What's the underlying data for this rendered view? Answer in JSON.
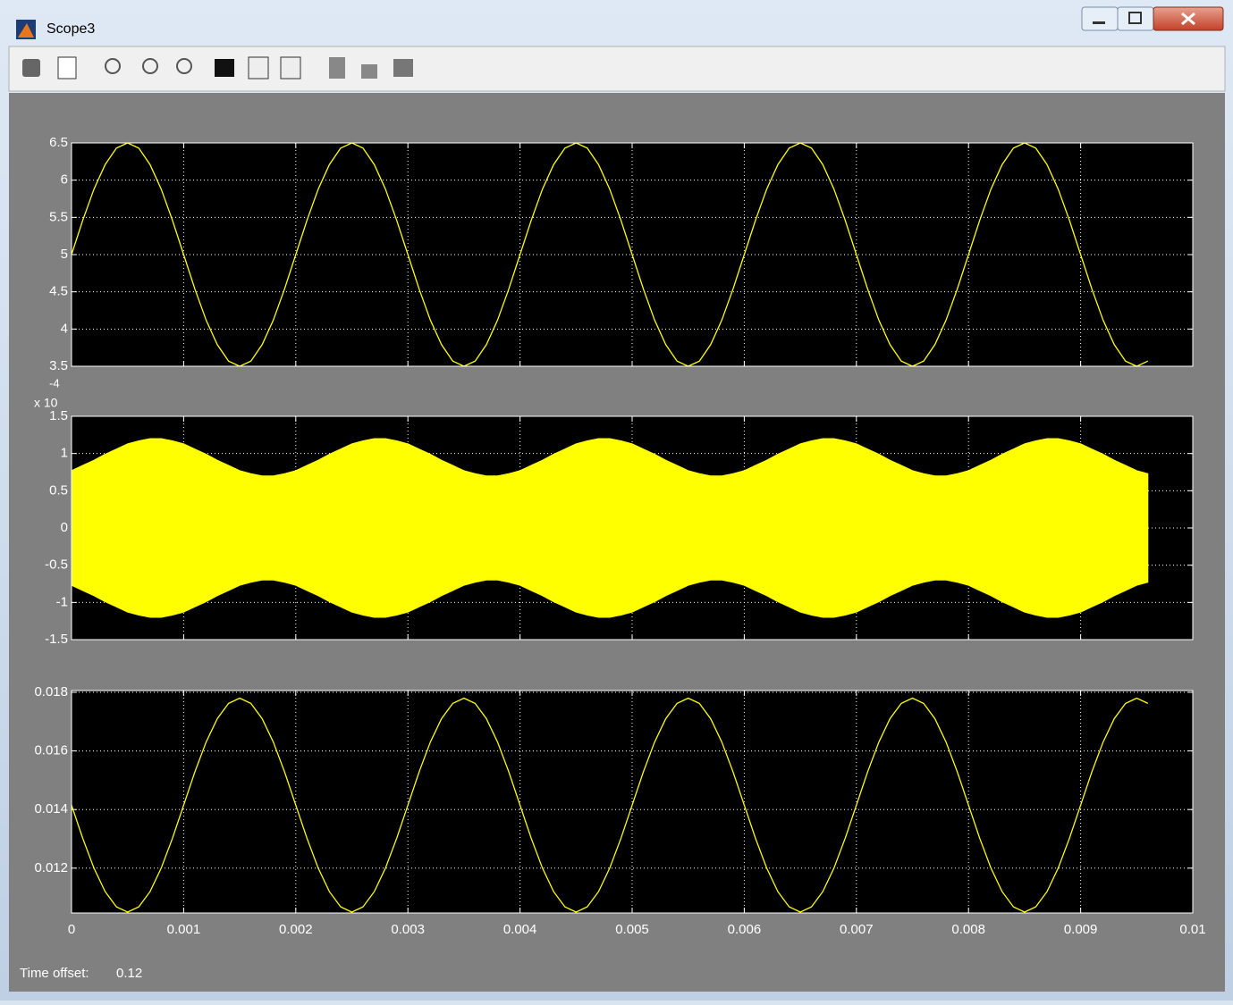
{
  "window": {
    "title": "Scope3"
  },
  "time_offset": {
    "label": "Time offset:",
    "value": "0.12"
  },
  "chart_data": [
    {
      "type": "line",
      "grid": true,
      "ylim": [
        3.5,
        6.5
      ],
      "yticks": [
        3.5,
        4,
        4.5,
        5,
        5.5,
        6,
        6.5
      ],
      "x": [
        0,
        0.0001,
        0.0002,
        0.0003,
        0.0004,
        0.0005,
        0.0006,
        0.0007,
        0.0008,
        0.0009,
        0.001,
        0.0011,
        0.0012,
        0.0013,
        0.0014,
        0.0015,
        0.0016,
        0.0017,
        0.0018,
        0.0019,
        0.002,
        0.0021,
        0.0022,
        0.0023,
        0.0024,
        0.0025,
        0.0026,
        0.0027,
        0.0028,
        0.0029,
        0.003,
        0.0031,
        0.0032,
        0.0033,
        0.0034,
        0.0035,
        0.0036,
        0.0037,
        0.0038,
        0.0039,
        0.004,
        0.0041,
        0.0042,
        0.0043,
        0.0044,
        0.0045,
        0.0046,
        0.0047,
        0.0048,
        0.0049,
        0.005,
        0.0051,
        0.0052,
        0.0053,
        0.0054,
        0.0055,
        0.0056,
        0.0057,
        0.0058,
        0.0059,
        0.006,
        0.0061,
        0.0062,
        0.0063,
        0.0064,
        0.0065,
        0.0066,
        0.0067,
        0.0068,
        0.0069,
        0.007,
        0.0071,
        0.0072,
        0.0073,
        0.0074,
        0.0075,
        0.0076,
        0.0077,
        0.0078,
        0.0079,
        0.008,
        0.0081,
        0.0082,
        0.0083,
        0.0084,
        0.0085,
        0.0086,
        0.0087,
        0.0088,
        0.0089,
        0.009,
        0.0091,
        0.0092,
        0.0093,
        0.0094,
        0.0095,
        0.0096
      ],
      "series": [
        {
          "color": "#ffff00",
          "values": [
            5,
            5.46,
            5.88,
            6.21,
            6.43,
            6.5,
            6.43,
            6.21,
            5.88,
            5.46,
            5,
            4.54,
            4.12,
            3.79,
            3.57,
            3.5,
            3.57,
            3.79,
            4.12,
            4.54,
            5,
            5.46,
            5.88,
            6.21,
            6.43,
            6.5,
            6.43,
            6.21,
            5.88,
            5.46,
            5,
            4.54,
            4.12,
            3.79,
            3.57,
            3.5,
            3.57,
            3.79,
            4.12,
            4.54,
            5,
            5.46,
            5.88,
            6.21,
            6.43,
            6.5,
            6.43,
            6.21,
            5.88,
            5.46,
            5,
            4.54,
            4.12,
            3.79,
            3.57,
            3.5,
            3.57,
            3.79,
            4.12,
            4.54,
            5,
            5.46,
            5.88,
            6.21,
            6.43,
            6.5,
            6.43,
            6.21,
            5.88,
            5.46,
            5,
            4.54,
            4.12,
            3.79,
            3.57,
            3.5,
            3.57,
            3.79,
            4.12,
            4.54,
            5,
            5.46,
            5.88,
            6.21,
            6.43,
            6.5,
            6.43,
            6.21,
            5.88,
            5.46,
            5,
            4.54,
            4.12,
            3.79,
            3.57,
            3.5,
            3.57
          ]
        }
      ]
    },
    {
      "type": "range_area",
      "grid": true,
      "ylim": [
        -1.5,
        1.5
      ],
      "yticks": [
        -1.5,
        -1,
        -0.5,
        0,
        0.5,
        1,
        1.5
      ],
      "exponent_label": "x 10",
      "exponent": -4,
      "color": "#ffff00",
      "x": [
        0,
        0.0001,
        0.0002,
        0.0003,
        0.0004,
        0.0005,
        0.0006,
        0.0007,
        0.0008,
        0.0009,
        0.001,
        0.0011,
        0.0012,
        0.0013,
        0.0014,
        0.0015,
        0.0016,
        0.0017,
        0.0018,
        0.0019,
        0.002,
        0.0021,
        0.0022,
        0.0023,
        0.0024,
        0.0025,
        0.0026,
        0.0027,
        0.0028,
        0.0029,
        0.003,
        0.0031,
        0.0032,
        0.0033,
        0.0034,
        0.0035,
        0.0036,
        0.0037,
        0.0038,
        0.0039,
        0.004,
        0.0041,
        0.0042,
        0.0043,
        0.0044,
        0.0045,
        0.0046,
        0.0047,
        0.0048,
        0.0049,
        0.005,
        0.0051,
        0.0052,
        0.0053,
        0.0054,
        0.0055,
        0.0056,
        0.0057,
        0.0058,
        0.0059,
        0.006,
        0.0061,
        0.0062,
        0.0063,
        0.0064,
        0.0065,
        0.0066,
        0.0067,
        0.0068,
        0.0069,
        0.007,
        0.0071,
        0.0072,
        0.0073,
        0.0074,
        0.0075,
        0.0076,
        0.0077,
        0.0078,
        0.0079,
        0.008,
        0.0081,
        0.0082,
        0.0083,
        0.0084,
        0.0085,
        0.0086,
        0.0087,
        0.0088,
        0.0089,
        0.009,
        0.0091,
        0.0092,
        0.0093,
        0.0094,
        0.0095,
        0.0096
      ],
      "upper": [
        0.77,
        0.84,
        0.91,
        0.99,
        1.06,
        1.13,
        1.17,
        1.2,
        1.2,
        1.17,
        1.13,
        1.06,
        0.99,
        0.91,
        0.84,
        0.77,
        0.73,
        0.7,
        0.7,
        0.73,
        0.77,
        0.84,
        0.91,
        0.99,
        1.06,
        1.13,
        1.17,
        1.2,
        1.2,
        1.17,
        1.13,
        1.06,
        0.99,
        0.91,
        0.84,
        0.77,
        0.73,
        0.7,
        0.7,
        0.73,
        0.77,
        0.84,
        0.91,
        0.99,
        1.06,
        1.13,
        1.17,
        1.2,
        1.2,
        1.17,
        1.13,
        1.06,
        0.99,
        0.91,
        0.84,
        0.77,
        0.73,
        0.7,
        0.7,
        0.73,
        0.77,
        0.84,
        0.91,
        0.99,
        1.06,
        1.13,
        1.17,
        1.2,
        1.2,
        1.17,
        1.13,
        1.06,
        0.99,
        0.91,
        0.84,
        0.77,
        0.73,
        0.7,
        0.7,
        0.73,
        0.77,
        0.84,
        0.91,
        0.99,
        1.06,
        1.13,
        1.17,
        1.2,
        1.2,
        1.17,
        1.13,
        1.06,
        0.99,
        0.91,
        0.84,
        0.77,
        0.73
      ],
      "lower": [
        -0.77,
        -0.84,
        -0.91,
        -0.99,
        -1.06,
        -1.13,
        -1.17,
        -1.2,
        -1.2,
        -1.17,
        -1.13,
        -1.06,
        -0.99,
        -0.91,
        -0.84,
        -0.77,
        -0.73,
        -0.7,
        -0.7,
        -0.73,
        -0.77,
        -0.84,
        -0.91,
        -0.99,
        -1.06,
        -1.13,
        -1.17,
        -1.2,
        -1.2,
        -1.17,
        -1.13,
        -1.06,
        -0.99,
        -0.91,
        -0.84,
        -0.77,
        -0.73,
        -0.7,
        -0.7,
        -0.73,
        -0.77,
        -0.84,
        -0.91,
        -0.99,
        -1.06,
        -1.13,
        -1.17,
        -1.2,
        -1.2,
        -1.17,
        -1.13,
        -1.06,
        -0.99,
        -0.91,
        -0.84,
        -0.77,
        -0.73,
        -0.7,
        -0.7,
        -0.73,
        -0.77,
        -0.84,
        -0.91,
        -0.99,
        -1.06,
        -1.13,
        -1.17,
        -1.2,
        -1.2,
        -1.17,
        -1.13,
        -1.06,
        -0.99,
        -0.91,
        -0.84,
        -0.77,
        -0.73,
        -0.7,
        -0.7,
        -0.73,
        -0.77,
        -0.84,
        -0.91,
        -0.99,
        -1.06,
        -1.13,
        -1.17,
        -1.2,
        -1.2,
        -1.17,
        -1.13,
        -1.06,
        -0.99,
        -0.91,
        -0.84,
        -0.77,
        -0.73
      ]
    },
    {
      "type": "line",
      "grid": true,
      "ylim": [
        0.01047,
        0.01806
      ],
      "yticks": [
        0.012,
        0.014,
        0.016,
        0.018
      ],
      "xlim": [
        0,
        0.01
      ],
      "xticks": [
        0,
        0.001,
        0.002,
        0.003,
        0.004,
        0.005,
        0.006,
        0.007,
        0.008,
        0.009,
        0.01
      ],
      "x": [
        0,
        0.0001,
        0.0002,
        0.0003,
        0.0004,
        0.0005,
        0.0006,
        0.0007,
        0.0008,
        0.0009,
        0.001,
        0.0011,
        0.0012,
        0.0013,
        0.0014,
        0.0015,
        0.0016,
        0.0017,
        0.0018,
        0.0019,
        0.002,
        0.0021,
        0.0022,
        0.0023,
        0.0024,
        0.0025,
        0.0026,
        0.0027,
        0.0028,
        0.0029,
        0.003,
        0.0031,
        0.0032,
        0.0033,
        0.0034,
        0.0035,
        0.0036,
        0.0037,
        0.0038,
        0.0039,
        0.004,
        0.0041,
        0.0042,
        0.0043,
        0.0044,
        0.0045,
        0.0046,
        0.0047,
        0.0048,
        0.0049,
        0.005,
        0.0051,
        0.0052,
        0.0053,
        0.0054,
        0.0055,
        0.0056,
        0.0057,
        0.0058,
        0.0059,
        0.006,
        0.0061,
        0.0062,
        0.0063,
        0.0064,
        0.0065,
        0.0066,
        0.0067,
        0.0068,
        0.0069,
        0.007,
        0.0071,
        0.0072,
        0.0073,
        0.0074,
        0.0075,
        0.0076,
        0.0077,
        0.0078,
        0.0079,
        0.008,
        0.0081,
        0.0082,
        0.0083,
        0.0084,
        0.0085,
        0.0086,
        0.0087,
        0.0088,
        0.0089,
        0.009,
        0.0091,
        0.0092,
        0.0093,
        0.0094,
        0.0095,
        0.0096
      ],
      "series": [
        {
          "color": "#ffff00",
          "values": [
            0.01415,
            0.01302,
            0.012,
            0.0112,
            0.01068,
            0.0105,
            0.01068,
            0.0112,
            0.012,
            0.01302,
            0.01415,
            0.01528,
            0.0163,
            0.0171,
            0.01762,
            0.0178,
            0.01762,
            0.0171,
            0.0163,
            0.01528,
            0.01415,
            0.01302,
            0.012,
            0.0112,
            0.01068,
            0.0105,
            0.01068,
            0.0112,
            0.012,
            0.01302,
            0.01415,
            0.01528,
            0.0163,
            0.0171,
            0.01762,
            0.0178,
            0.01762,
            0.0171,
            0.0163,
            0.01528,
            0.01415,
            0.01302,
            0.012,
            0.0112,
            0.01068,
            0.0105,
            0.01068,
            0.0112,
            0.012,
            0.01302,
            0.01415,
            0.01528,
            0.0163,
            0.0171,
            0.01762,
            0.0178,
            0.01762,
            0.0171,
            0.0163,
            0.01528,
            0.01415,
            0.01302,
            0.012,
            0.0112,
            0.01068,
            0.0105,
            0.01068,
            0.0112,
            0.012,
            0.01302,
            0.01415,
            0.01528,
            0.0163,
            0.0171,
            0.01762,
            0.0178,
            0.01762,
            0.0171,
            0.0163,
            0.01528,
            0.01415,
            0.01302,
            0.012,
            0.0112,
            0.01068,
            0.0105,
            0.01068,
            0.0112,
            0.012,
            0.01302,
            0.01415,
            0.01528,
            0.0163,
            0.0171,
            0.01762,
            0.0178,
            0.01762
          ]
        }
      ]
    }
  ]
}
